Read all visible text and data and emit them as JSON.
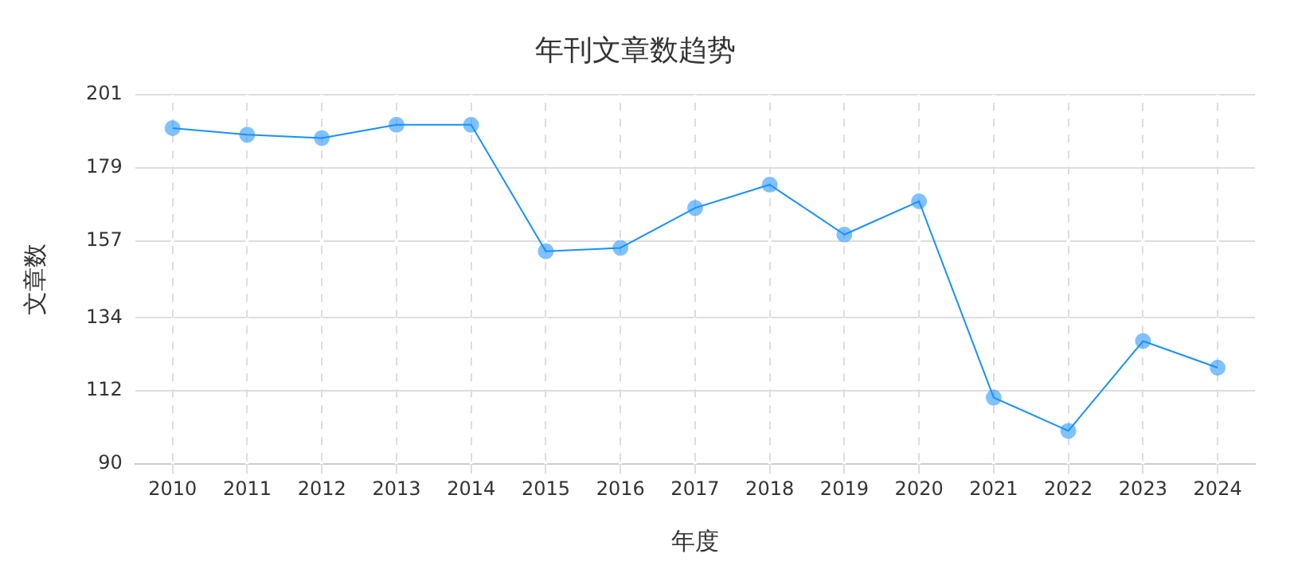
{
  "chart_data": {
    "type": "line",
    "title": "年刊文章数趋势",
    "xlabel": "年度",
    "ylabel": "文章数",
    "categories": [
      "2010",
      "2011",
      "2012",
      "2013",
      "2014",
      "2015",
      "2016",
      "2017",
      "2018",
      "2019",
      "2020",
      "2021",
      "2022",
      "2023",
      "2024"
    ],
    "series": [
      {
        "color": "#1890ff",
        "values": [
          191,
          189,
          188,
          192,
          192,
          154,
          155,
          167,
          174,
          159,
          169,
          110,
          100,
          127,
          119
        ]
      }
    ],
    "ylim": [
      90,
      201
    ],
    "yticks": [
      90,
      112,
      134,
      157,
      179,
      201
    ],
    "grid": true,
    "marker": "circle",
    "line_style": "solid",
    "legend": false
  }
}
